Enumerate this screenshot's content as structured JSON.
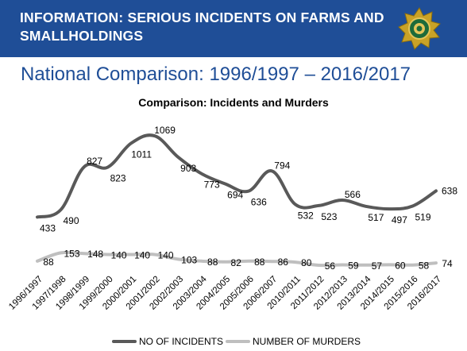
{
  "header": {
    "title_line1": "INFORMATION: SERIOUS INCIDENTS ON FARMS AND",
    "title_line2": "SMALLHOLDINGS",
    "logo_icon": "police-star-badge-icon"
  },
  "subtitle": "National Comparison: 1996/1997 – 2016/2017",
  "colors": {
    "header_bg": "#1f4e97",
    "incidents": "#595959",
    "murders": "#bfbfbf"
  },
  "chart_data": {
    "type": "line",
    "title": "Comparison: Incidents and Murders",
    "categories": [
      "1996/1997",
      "1997/1998",
      "1998/1999",
      "1999/2000",
      "2000/2001",
      "2001/2002",
      "2002/2003",
      "2003/2004",
      "2004/2005",
      "2005/2006",
      "2006/2007",
      "2010/2011",
      "2011/2012",
      "2012/2013",
      "2013/2014",
      "2014/2015",
      "2015/2016",
      "2016/2017"
    ],
    "series": [
      {
        "name": "NO OF INCIDENTS",
        "values": [
          433,
          490,
          827,
          823,
          1011,
          1069,
          903,
          773,
          694,
          636,
          794,
          532,
          523,
          566,
          517,
          497,
          519,
          638
        ]
      },
      {
        "name": "NUMBER OF MURDERS",
        "values": [
          88,
          153,
          148,
          140,
          140,
          140,
          103,
          88,
          82,
          88,
          86,
          80,
          56,
          59,
          57,
          60,
          58,
          74
        ]
      }
    ],
    "legend": "bottom",
    "grid": false,
    "smooth": true
  }
}
